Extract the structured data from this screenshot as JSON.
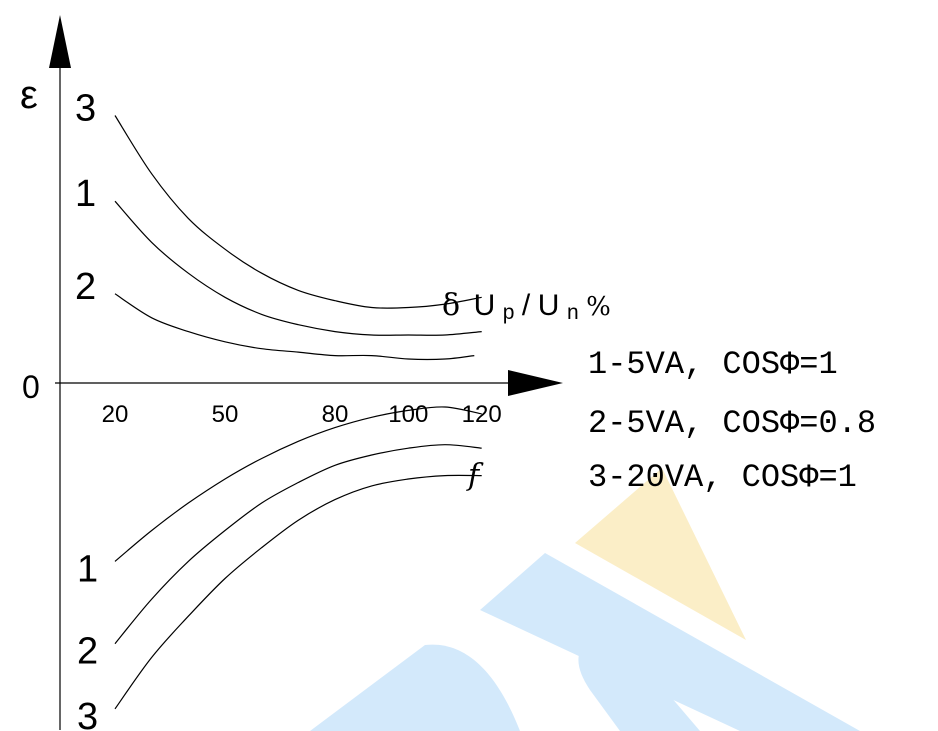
{
  "chart_data": {
    "type": "line",
    "yaxis_symbol": "ε",
    "origin_label": "0",
    "x_ticks": [
      "20",
      "50",
      "80",
      "100",
      "120"
    ],
    "x_tick_values": [
      20,
      50,
      80,
      100,
      120
    ],
    "xlim": [
      5,
      140
    ],
    "ylim": [
      -10,
      10
    ],
    "ratio_error_label": {
      "delta": "δ",
      "u1": "U",
      "sub1": "p",
      "slash": "/",
      "u2": "U",
      "sub2": "n",
      "pct": "%"
    },
    "phase_error_label": "f",
    "legend": [
      "1-5VA, COSΦ=1",
      "2-5VA, COSΦ=0.8",
      "3-20VA, COSΦ=1"
    ],
    "ratio_error_series": [
      {
        "name": "3",
        "x": [
          20,
          30,
          40,
          50,
          60,
          70,
          80,
          90,
          100,
          110,
          120
        ],
        "y": [
          7.8,
          6.1,
          4.8,
          3.9,
          3.2,
          2.7,
          2.4,
          2.2,
          2.2,
          2.3,
          2.5
        ]
      },
      {
        "name": "1",
        "x": [
          20,
          30,
          40,
          50,
          60,
          70,
          80,
          90,
          100,
          110,
          120
        ],
        "y": [
          5.3,
          4.1,
          3.2,
          2.5,
          2.0,
          1.7,
          1.5,
          1.4,
          1.4,
          1.4,
          1.5
        ]
      },
      {
        "name": "2",
        "x": [
          20,
          30,
          40,
          50,
          60,
          70,
          80,
          90,
          100,
          110,
          118
        ],
        "y": [
          2.6,
          1.9,
          1.5,
          1.2,
          1.0,
          0.9,
          0.8,
          0.8,
          0.7,
          0.7,
          0.8
        ]
      }
    ],
    "phase_error_series": [
      {
        "name": "1",
        "x": [
          20,
          30,
          40,
          50,
          60,
          70,
          80,
          90,
          100,
          110,
          120
        ],
        "y": [
          -5.2,
          -4.3,
          -3.5,
          -2.8,
          -2.2,
          -1.7,
          -1.3,
          -1.0,
          -0.8,
          -0.7,
          -0.9
        ]
      },
      {
        "name": "2",
        "x": [
          20,
          30,
          40,
          50,
          60,
          70,
          80,
          90,
          100,
          110,
          120
        ],
        "y": [
          -7.6,
          -6.3,
          -5.2,
          -4.3,
          -3.5,
          -2.9,
          -2.4,
          -2.1,
          -1.9,
          -1.8,
          -1.9
        ]
      },
      {
        "name": "3",
        "x": [
          20,
          30,
          40,
          50,
          60,
          70,
          80,
          90,
          100,
          110,
          120
        ],
        "y": [
          -9.5,
          -8.0,
          -6.8,
          -5.7,
          -4.8,
          -4.0,
          -3.4,
          -3.0,
          -2.8,
          -2.7,
          -2.7
        ]
      }
    ],
    "grid": false,
    "legend_position": "right"
  },
  "watermark": {
    "colors": {
      "blue": "#d3e9fb",
      "gold": "#fbeec7"
    }
  }
}
